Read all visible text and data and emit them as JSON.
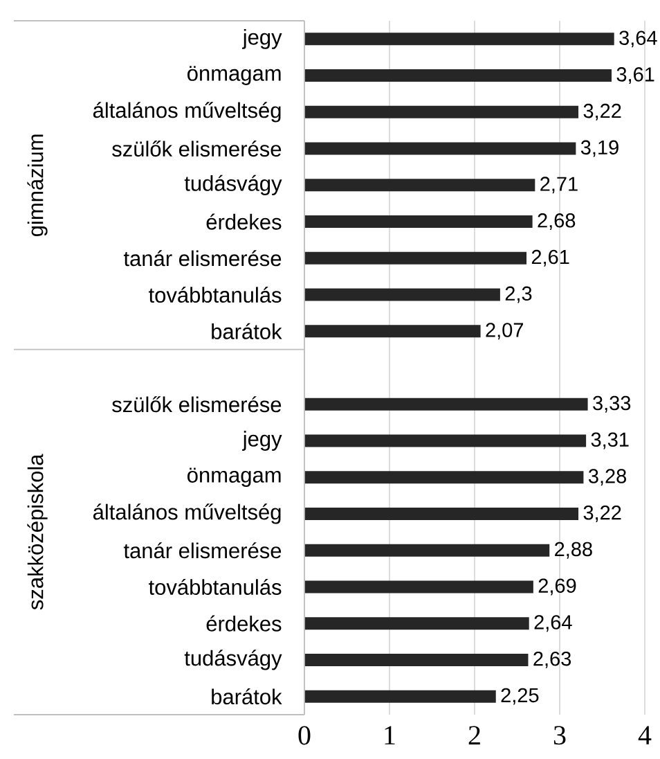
{
  "chart_data": {
    "type": "bar",
    "orientation": "horizontal",
    "categories": [
      "jegy",
      "önmagam",
      "általános műveltség",
      "szülők elismerése",
      "tudásvágy",
      "érdekes",
      "tanár elismerése",
      "továbbtanulás",
      "barátok",
      null,
      "szülők elismerése",
      "jegy",
      "önmagam",
      "általános műveltség",
      "tanár elismerése",
      "továbbtanulás",
      "érdekes",
      "tudásvágy",
      "barátok"
    ],
    "values": [
      3.64,
      3.61,
      3.22,
      3.19,
      2.71,
      2.68,
      2.61,
      2.3,
      2.07,
      null,
      3.33,
      3.31,
      3.28,
      3.22,
      2.88,
      2.69,
      2.64,
      2.63,
      2.25
    ],
    "value_labels": [
      "3,64",
      "3,61",
      "3,22",
      "3,19",
      "2,71",
      "2,68",
      "2,61",
      "2,3",
      "2,07",
      null,
      "3,33",
      "3,31",
      "3,28",
      "3,22",
      "2,88",
      "2,69",
      "2,64",
      "2,63",
      "2,25"
    ],
    "color": "#262626",
    "xlim": [
      0,
      4
    ],
    "xticks": [
      0,
      1,
      2,
      3,
      4
    ],
    "grid": "x",
    "annotations": [
      "gimnázium",
      "szakközépiskola"
    ]
  }
}
